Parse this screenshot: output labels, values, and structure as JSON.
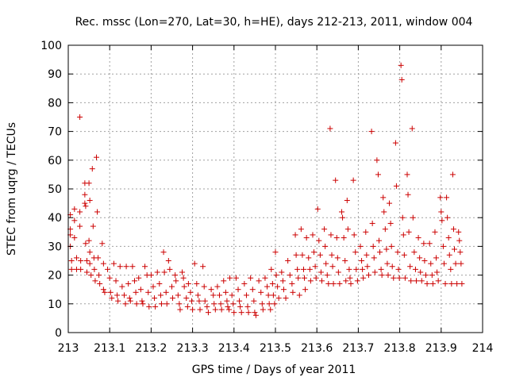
{
  "chart_data": {
    "type": "scatter",
    "title": "Rec. mssc (Lon=270, Lat=30, h=HE), days 212-213, 2011, window 004",
    "xlabel": "GPS time / Days of year 2011",
    "ylabel": "STEC from uqrg / TECUs",
    "xlim": [
      213,
      214
    ],
    "ylim": [
      0,
      100
    ],
    "xticks": [
      213,
      213.1,
      213.2,
      213.3,
      213.4,
      213.5,
      213.6,
      213.7,
      213.8,
      213.9,
      214
    ],
    "xtick_labels": [
      "213",
      "213.1",
      "213.2",
      "213.3",
      "213.4",
      "213.5",
      "213.6",
      "213.7",
      "213.8",
      "213.9",
      "214"
    ],
    "yticks": [
      0,
      10,
      20,
      30,
      40,
      50,
      60,
      70,
      80,
      90,
      100
    ],
    "ytick_labels": [
      "0",
      "10",
      "20",
      "30",
      "40",
      "50",
      "60",
      "70",
      "80",
      "90",
      "100"
    ],
    "grid": true,
    "marker": "+",
    "color": "#cc0000",
    "series": [
      {
        "name": "STEC",
        "points": [
          [
            213.005,
            41
          ],
          [
            213.005,
            36
          ],
          [
            213.005,
            34
          ],
          [
            213.005,
            30
          ],
          [
            213.008,
            25
          ],
          [
            213.008,
            22
          ],
          [
            213.015,
            43
          ],
          [
            213.015,
            39
          ],
          [
            213.015,
            33
          ],
          [
            213.02,
            26
          ],
          [
            213.02,
            22
          ],
          [
            213.028,
            75
          ],
          [
            213.028,
            42
          ],
          [
            213.028,
            37
          ],
          [
            213.03,
            25
          ],
          [
            213.03,
            22
          ],
          [
            213.04,
            52
          ],
          [
            213.04,
            48
          ],
          [
            213.04,
            45
          ],
          [
            213.042,
            44
          ],
          [
            213.042,
            31
          ],
          [
            213.045,
            25
          ],
          [
            213.045,
            21
          ],
          [
            213.05,
            52
          ],
          [
            213.052,
            46
          ],
          [
            213.05,
            32
          ],
          [
            213.052,
            28
          ],
          [
            213.052,
            24
          ],
          [
            213.055,
            20
          ],
          [
            213.058,
            57
          ],
          [
            213.06,
            37
          ],
          [
            213.062,
            26
          ],
          [
            213.063,
            22
          ],
          [
            213.065,
            18
          ],
          [
            213.068,
            61
          ],
          [
            213.07,
            42
          ],
          [
            213.072,
            26
          ],
          [
            213.074,
            20
          ],
          [
            213.076,
            17
          ],
          [
            213.082,
            31
          ],
          [
            213.085,
            24
          ],
          [
            213.085,
            15
          ],
          [
            213.088,
            14
          ],
          [
            213.095,
            22
          ],
          [
            213.1,
            19
          ],
          [
            213.102,
            14
          ],
          [
            213.105,
            12
          ],
          [
            213.11,
            24
          ],
          [
            213.115,
            18
          ],
          [
            213.118,
            13
          ],
          [
            213.12,
            11
          ],
          [
            213.125,
            23
          ],
          [
            213.13,
            16
          ],
          [
            213.135,
            13
          ],
          [
            213.138,
            10
          ],
          [
            213.14,
            23
          ],
          [
            213.145,
            17
          ],
          [
            213.148,
            12
          ],
          [
            213.15,
            11
          ],
          [
            213.155,
            23
          ],
          [
            213.16,
            18
          ],
          [
            213.163,
            14
          ],
          [
            213.165,
            10
          ],
          [
            213.17,
            19
          ],
          [
            213.175,
            15
          ],
          [
            213.178,
            11
          ],
          [
            213.18,
            10
          ],
          [
            213.185,
            23
          ],
          [
            213.19,
            20
          ],
          [
            213.193,
            14
          ],
          [
            213.195,
            9
          ],
          [
            213.2,
            20
          ],
          [
            213.205,
            16
          ],
          [
            213.208,
            12
          ],
          [
            213.21,
            9
          ],
          [
            213.215,
            21
          ],
          [
            213.22,
            17
          ],
          [
            213.223,
            13
          ],
          [
            213.225,
            10
          ],
          [
            213.23,
            28
          ],
          [
            213.232,
            21
          ],
          [
            213.236,
            14
          ],
          [
            213.238,
            10
          ],
          [
            213.242,
            25
          ],
          [
            213.245,
            22
          ],
          [
            213.25,
            16
          ],
          [
            213.252,
            12
          ],
          [
            213.258,
            20
          ],
          [
            213.26,
            18
          ],
          [
            213.265,
            13
          ],
          [
            213.268,
            10
          ],
          [
            213.27,
            8
          ],
          [
            213.275,
            21
          ],
          [
            213.278,
            19
          ],
          [
            213.28,
            16
          ],
          [
            213.285,
            12
          ],
          [
            213.288,
            9
          ],
          [
            213.29,
            17
          ],
          [
            213.295,
            14
          ],
          [
            213.298,
            11
          ],
          [
            213.3,
            8
          ],
          [
            213.305,
            24
          ],
          [
            213.31,
            17
          ],
          [
            213.313,
            13
          ],
          [
            213.316,
            11
          ],
          [
            213.318,
            8
          ],
          [
            213.325,
            23
          ],
          [
            213.328,
            16
          ],
          [
            213.33,
            11
          ],
          [
            213.335,
            9
          ],
          [
            213.338,
            7
          ],
          [
            213.345,
            15
          ],
          [
            213.35,
            13
          ],
          [
            213.352,
            10
          ],
          [
            213.355,
            8
          ],
          [
            213.36,
            16
          ],
          [
            213.365,
            13
          ],
          [
            213.368,
            10
          ],
          [
            213.37,
            8
          ],
          [
            213.375,
            18
          ],
          [
            213.38,
            14
          ],
          [
            213.383,
            11
          ],
          [
            213.385,
            9
          ],
          [
            213.388,
            8
          ],
          [
            213.39,
            19
          ],
          [
            213.395,
            13
          ],
          [
            213.398,
            10
          ],
          [
            213.4,
            7
          ],
          [
            213.405,
            19
          ],
          [
            213.41,
            15
          ],
          [
            213.413,
            11
          ],
          [
            213.415,
            9
          ],
          [
            213.418,
            7
          ],
          [
            213.425,
            17
          ],
          [
            213.43,
            13
          ],
          [
            213.433,
            9
          ],
          [
            213.435,
            7
          ],
          [
            213.44,
            19
          ],
          [
            213.445,
            15
          ],
          [
            213.448,
            11
          ],
          [
            213.45,
            7
          ],
          [
            213.453,
            6
          ],
          [
            213.46,
            18
          ],
          [
            213.465,
            14
          ],
          [
            213.468,
            10
          ],
          [
            213.47,
            8
          ],
          [
            213.475,
            19
          ],
          [
            213.48,
            16
          ],
          [
            213.483,
            13
          ],
          [
            213.485,
            10
          ],
          [
            213.488,
            8
          ],
          [
            213.49,
            22
          ],
          [
            213.493,
            17
          ],
          [
            213.495,
            13
          ],
          [
            213.498,
            10
          ],
          [
            213.5,
            28
          ],
          [
            213.502,
            20
          ],
          [
            213.505,
            16
          ],
          [
            213.508,
            12
          ],
          [
            213.515,
            21
          ],
          [
            213.518,
            18
          ],
          [
            213.52,
            15
          ],
          [
            213.525,
            12
          ],
          [
            213.53,
            25
          ],
          [
            213.535,
            20
          ],
          [
            213.54,
            17
          ],
          [
            213.542,
            14
          ],
          [
            213.548,
            34
          ],
          [
            213.55,
            27
          ],
          [
            213.553,
            22
          ],
          [
            213.555,
            19
          ],
          [
            213.558,
            13
          ],
          [
            213.562,
            36
          ],
          [
            213.565,
            27
          ],
          [
            213.568,
            22
          ],
          [
            213.57,
            19
          ],
          [
            213.572,
            15
          ],
          [
            213.575,
            33
          ],
          [
            213.58,
            26
          ],
          [
            213.583,
            22
          ],
          [
            213.585,
            18
          ],
          [
            213.59,
            34
          ],
          [
            213.593,
            28
          ],
          [
            213.596,
            23
          ],
          [
            213.598,
            19
          ],
          [
            213.602,
            43
          ],
          [
            213.605,
            32
          ],
          [
            213.608,
            27
          ],
          [
            213.61,
            21
          ],
          [
            213.612,
            18
          ],
          [
            213.618,
            36
          ],
          [
            213.62,
            30
          ],
          [
            213.622,
            24
          ],
          [
            213.625,
            20
          ],
          [
            213.628,
            17
          ],
          [
            213.632,
            71
          ],
          [
            213.634,
            34
          ],
          [
            213.636,
            27
          ],
          [
            213.638,
            23
          ],
          [
            213.64,
            17
          ],
          [
            213.645,
            53
          ],
          [
            213.648,
            33
          ],
          [
            213.65,
            26
          ],
          [
            213.652,
            21
          ],
          [
            213.655,
            17
          ],
          [
            213.66,
            42
          ],
          [
            213.662,
            40
          ],
          [
            213.665,
            33
          ],
          [
            213.668,
            25
          ],
          [
            213.67,
            18
          ],
          [
            213.673,
            46
          ],
          [
            213.675,
            36
          ],
          [
            213.678,
            22
          ],
          [
            213.68,
            19
          ],
          [
            213.682,
            17
          ],
          [
            213.688,
            53
          ],
          [
            213.69,
            34
          ],
          [
            213.693,
            28
          ],
          [
            213.695,
            22
          ],
          [
            213.698,
            18
          ],
          [
            213.705,
            30
          ],
          [
            213.708,
            25
          ],
          [
            213.71,
            22
          ],
          [
            213.712,
            19
          ],
          [
            213.718,
            35
          ],
          [
            213.72,
            27
          ],
          [
            213.722,
            23
          ],
          [
            213.725,
            20
          ],
          [
            213.732,
            70
          ],
          [
            213.734,
            38
          ],
          [
            213.736,
            30
          ],
          [
            213.738,
            26
          ],
          [
            213.74,
            21
          ],
          [
            213.745,
            60
          ],
          [
            213.748,
            55
          ],
          [
            213.75,
            32
          ],
          [
            213.752,
            28
          ],
          [
            213.755,
            22
          ],
          [
            213.757,
            20
          ],
          [
            213.76,
            47
          ],
          [
            213.762,
            42
          ],
          [
            213.765,
            36
          ],
          [
            213.768,
            29
          ],
          [
            213.77,
            24
          ],
          [
            213.772,
            20
          ],
          [
            213.775,
            45
          ],
          [
            213.778,
            38
          ],
          [
            213.78,
            30
          ],
          [
            213.782,
            23
          ],
          [
            213.785,
            19
          ],
          [
            213.79,
            66
          ],
          [
            213.792,
            51
          ],
          [
            213.795,
            28
          ],
          [
            213.797,
            22
          ],
          [
            213.799,
            19
          ],
          [
            213.803,
            93
          ],
          [
            213.805,
            88
          ],
          [
            213.807,
            40
          ],
          [
            213.809,
            34
          ],
          [
            213.811,
            27
          ],
          [
            213.813,
            19
          ],
          [
            213.818,
            55
          ],
          [
            213.82,
            48
          ],
          [
            213.822,
            35
          ],
          [
            213.825,
            23
          ],
          [
            213.827,
            18
          ],
          [
            213.83,
            71
          ],
          [
            213.832,
            40
          ],
          [
            213.835,
            28
          ],
          [
            213.838,
            22
          ],
          [
            213.84,
            18
          ],
          [
            213.845,
            33
          ],
          [
            213.848,
            26
          ],
          [
            213.85,
            21
          ],
          [
            213.853,
            18
          ],
          [
            213.858,
            31
          ],
          [
            213.86,
            25
          ],
          [
            213.863,
            20
          ],
          [
            213.866,
            17
          ],
          [
            213.872,
            31
          ],
          [
            213.875,
            24
          ],
          [
            213.878,
            20
          ],
          [
            213.88,
            17
          ],
          [
            213.885,
            35
          ],
          [
            213.888,
            26
          ],
          [
            213.89,
            21
          ],
          [
            213.893,
            18
          ],
          [
            213.898,
            47
          ],
          [
            213.9,
            42
          ],
          [
            213.902,
            39
          ],
          [
            213.905,
            30
          ],
          [
            213.907,
            24
          ],
          [
            213.91,
            17
          ],
          [
            213.913,
            47
          ],
          [
            213.915,
            40
          ],
          [
            213.918,
            33
          ],
          [
            213.92,
            27
          ],
          [
            213.923,
            22
          ],
          [
            213.925,
            17
          ],
          [
            213.928,
            55
          ],
          [
            213.93,
            36
          ],
          [
            213.932,
            29
          ],
          [
            213.935,
            24
          ],
          [
            213.938,
            17
          ],
          [
            213.942,
            35
          ],
          [
            213.944,
            32
          ],
          [
            213.946,
            28
          ],
          [
            213.948,
            24
          ],
          [
            213.95,
            17
          ]
        ]
      }
    ]
  }
}
